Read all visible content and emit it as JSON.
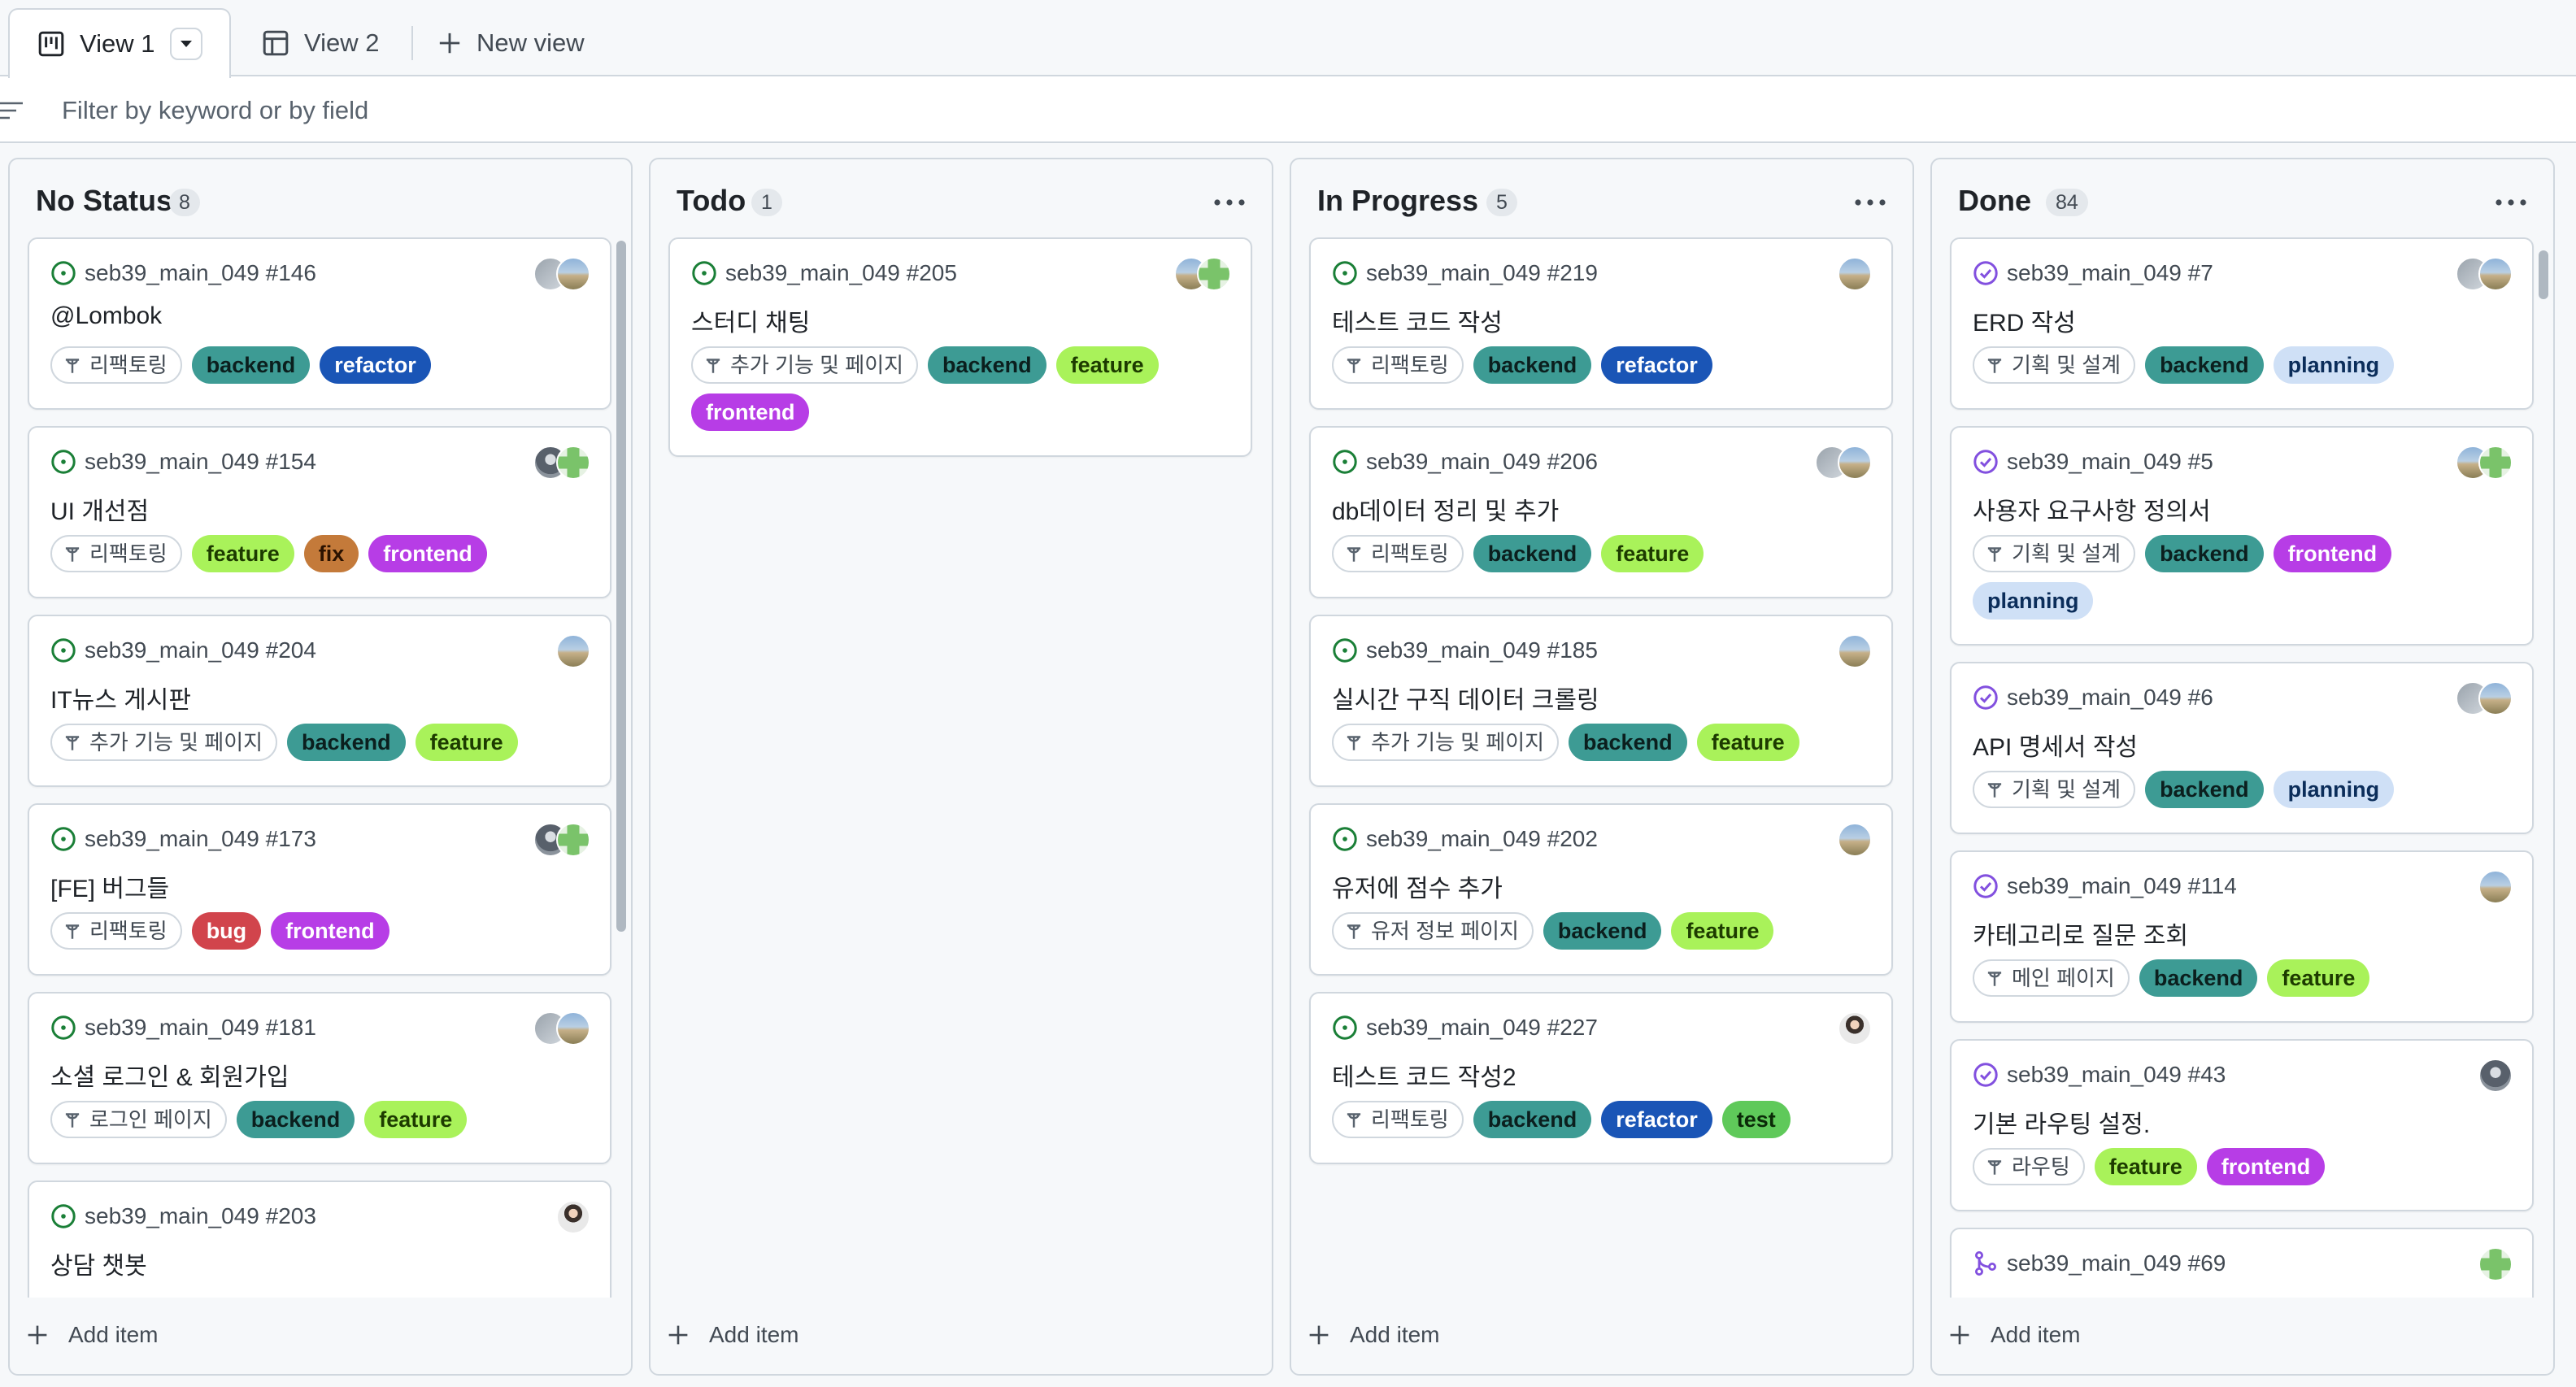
{
  "tabs": [
    {
      "label": "View 1",
      "icon": "board-icon",
      "active": true
    },
    {
      "label": "View 2",
      "icon": "table-icon",
      "active": false
    },
    {
      "label": "New view",
      "icon": "plus-icon",
      "active": false
    }
  ],
  "filter": {
    "placeholder": "Filter by keyword or by field",
    "value": ""
  },
  "add_item_label": "Add item",
  "label_colors": {
    "backend": {
      "bg": "#3d9b94",
      "fg": "#0b1f1e"
    },
    "refactor": {
      "bg": "#1a55b6",
      "fg": "#ffffff"
    },
    "feature": {
      "bg": "#a9f25a",
      "fg": "#1d3b00"
    },
    "fix": {
      "bg": "#c47a3a",
      "fg": "#2b1200"
    },
    "frontend": {
      "bg": "#b73de6",
      "fg": "#ffffff"
    },
    "bug": {
      "bg": "#d1444c",
      "fg": "#ffffff"
    },
    "planning": {
      "bg": "#cfe0f6",
      "fg": "#0b2d5a"
    },
    "test": {
      "bg": "#5fc95a",
      "fg": "#0b2a08"
    }
  },
  "columns": [
    {
      "title": "No Status",
      "count": "8",
      "menu": false,
      "cards": [
        {
          "ref": "seb39_main_049 #146",
          "status": "open",
          "title": "@Lombok",
          "pill": "리팩토링",
          "labels": [
            "backend",
            "refactor"
          ],
          "avatars": [
            "a-gray",
            "a-landscape"
          ]
        },
        {
          "ref": "seb39_main_049 #154",
          "status": "open",
          "title": "UI 개선점",
          "pill": "리팩토링",
          "labels": [
            "feature",
            "fix",
            "frontend"
          ],
          "avatars": [
            "a-dark",
            "a-pixel"
          ]
        },
        {
          "ref": "seb39_main_049 #204",
          "status": "open",
          "title": "IT뉴스 게시판",
          "pill": "추가 기능 및 페이지",
          "labels": [
            "backend",
            "feature"
          ],
          "avatars": [
            "a-landscape"
          ]
        },
        {
          "ref": "seb39_main_049 #173",
          "status": "open",
          "title": "[FE] 버그들",
          "pill": "리팩토링",
          "labels": [
            "bug",
            "frontend"
          ],
          "avatars": [
            "a-dark",
            "a-pixel"
          ]
        },
        {
          "ref": "seb39_main_049 #181",
          "status": "open",
          "title": "소셜 로그인 & 회원가입",
          "pill": "로그인 페이지",
          "labels": [
            "backend",
            "feature"
          ],
          "avatars": [
            "a-gray",
            "a-landscape"
          ]
        },
        {
          "ref": "seb39_main_049 #203",
          "status": "open",
          "title": "상담 챗봇",
          "pill": "",
          "labels": [],
          "avatars": [
            "a-person"
          ]
        }
      ]
    },
    {
      "title": "Todo",
      "count": "1",
      "menu": true,
      "cards": [
        {
          "ref": "seb39_main_049 #205",
          "status": "open",
          "title": "스터디 채팅",
          "pill": "추가 기능 및 페이지",
          "labels": [
            "backend",
            "feature",
            "frontend"
          ],
          "avatars": [
            "a-landscape",
            "a-pixel"
          ]
        }
      ]
    },
    {
      "title": "In Progress",
      "count": "5",
      "menu": true,
      "cards": [
        {
          "ref": "seb39_main_049 #219",
          "status": "open",
          "title": "테스트 코드 작성",
          "pill": "리팩토링",
          "labels": [
            "backend",
            "refactor"
          ],
          "avatars": [
            "a-landscape"
          ]
        },
        {
          "ref": "seb39_main_049 #206",
          "status": "open",
          "title": "db데이터 정리 및 추가",
          "pill": "리팩토링",
          "labels": [
            "backend",
            "feature"
          ],
          "avatars": [
            "a-gray",
            "a-landscape"
          ]
        },
        {
          "ref": "seb39_main_049 #185",
          "status": "open",
          "title": "실시간 구직 데이터 크롤링",
          "pill": "추가 기능 및 페이지",
          "labels": [
            "backend",
            "feature"
          ],
          "avatars": [
            "a-landscape"
          ]
        },
        {
          "ref": "seb39_main_049 #202",
          "status": "open",
          "title": "유저에 점수 추가",
          "pill": "유저 정보 페이지",
          "labels": [
            "backend",
            "feature"
          ],
          "avatars": [
            "a-landscape"
          ]
        },
        {
          "ref": "seb39_main_049 #227",
          "status": "open",
          "title": "테스트 코드 작성2",
          "pill": "리팩토링",
          "labels": [
            "backend",
            "refactor",
            "test"
          ],
          "avatars": [
            "a-person"
          ]
        }
      ]
    },
    {
      "title": "Done",
      "count": "84",
      "menu": true,
      "cards": [
        {
          "ref": "seb39_main_049 #7",
          "status": "closed",
          "title": "ERD 작성",
          "pill": "기획 및 설계",
          "labels": [
            "backend",
            "planning"
          ],
          "avatars": [
            "a-gray",
            "a-landscape"
          ]
        },
        {
          "ref": "seb39_main_049 #5",
          "status": "closed",
          "title": "사용자 요구사항 정의서",
          "pill": "기획 및 설계",
          "labels": [
            "backend",
            "frontend",
            "planning"
          ],
          "avatars": [
            "a-landscape",
            "a-pixel"
          ]
        },
        {
          "ref": "seb39_main_049 #6",
          "status": "closed",
          "title": "API 명세서 작성",
          "pill": "기획 및 설계",
          "labels": [
            "backend",
            "planning"
          ],
          "avatars": [
            "a-gray",
            "a-landscape"
          ]
        },
        {
          "ref": "seb39_main_049 #114",
          "status": "closed",
          "title": "카테고리로 질문 조회",
          "pill": "메인 페이지",
          "labels": [
            "backend",
            "feature"
          ],
          "avatars": [
            "a-landscape"
          ]
        },
        {
          "ref": "seb39_main_049 #43",
          "status": "closed",
          "title": "기본 라우팅 설정.",
          "pill": "라우팅",
          "labels": [
            "feature",
            "frontend"
          ],
          "avatars": [
            "a-dark"
          ]
        },
        {
          "ref": "seb39_main_049 #69",
          "status": "pr",
          "title": "",
          "pill": "",
          "labels": [],
          "avatars": [
            "a-pixel"
          ]
        }
      ]
    }
  ]
}
